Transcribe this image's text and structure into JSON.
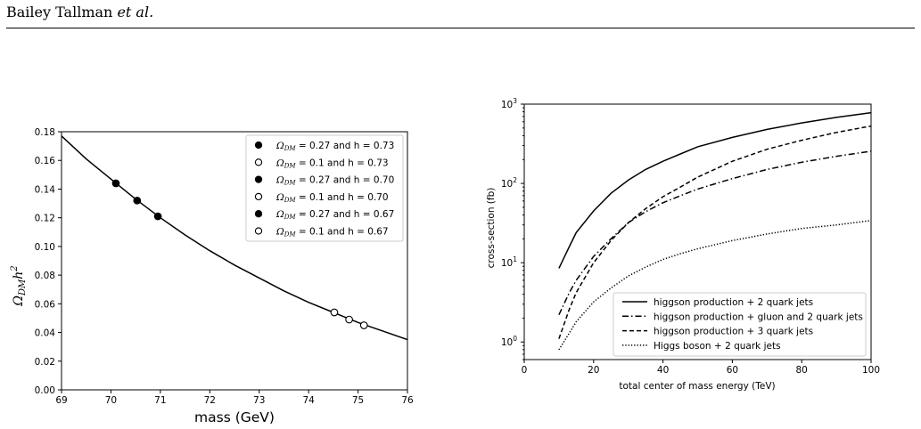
{
  "header": {
    "author": "Bailey Tallman",
    "etal": "et al."
  },
  "chart_data": [
    {
      "type": "line",
      "xlabel": "mass (GeV)",
      "ylabel": "Ω_DM h^2",
      "xlim": [
        69,
        76
      ],
      "ylim": [
        0,
        0.18
      ],
      "xticks": [
        "69",
        "70",
        "71",
        "72",
        "73",
        "74",
        "75",
        "76"
      ],
      "yticks": [
        "0.00",
        "0.02",
        "0.04",
        "0.06",
        "0.08",
        "0.10",
        "0.12",
        "0.14",
        "0.16",
        "0.18"
      ],
      "curve": {
        "x": [
          69.0,
          69.5,
          70.0,
          70.5,
          71.0,
          71.5,
          72.0,
          72.5,
          73.0,
          73.5,
          74.0,
          74.5,
          75.0,
          75.5,
          76.0
        ],
        "y": [
          0.177,
          0.161,
          0.147,
          0.133,
          0.12,
          0.108,
          0.097,
          0.087,
          0.078,
          0.069,
          0.061,
          0.054,
          0.047,
          0.041,
          0.035
        ]
      },
      "points": [
        {
          "x": 70.1,
          "y": 0.144,
          "filled": true
        },
        {
          "x": 70.53,
          "y": 0.132,
          "filled": true
        },
        {
          "x": 70.95,
          "y": 0.121,
          "filled": true
        },
        {
          "x": 74.52,
          "y": 0.054,
          "filled": false
        },
        {
          "x": 74.82,
          "y": 0.049,
          "filled": false
        },
        {
          "x": 75.12,
          "y": 0.045,
          "filled": false
        }
      ],
      "legend_position": "top-right",
      "legend": [
        {
          "label": "= 0.27 and h = 0.73",
          "filled": true
        },
        {
          "label": "= 0.1 and h = 0.73",
          "filled": false
        },
        {
          "label": "= 0.27 and h = 0.70",
          "filled": true
        },
        {
          "label": "= 0.1 and h = 0.70",
          "filled": false
        },
        {
          "label": "= 0.27 and h = 0.67",
          "filled": true
        },
        {
          "label": "= 0.1 and h = 0.67",
          "filled": false
        }
      ]
    },
    {
      "type": "line",
      "yscale": "log",
      "xlabel": "total center of mass energy (TeV)",
      "ylabel": "cross-section (fb)",
      "xlim": [
        0,
        100
      ],
      "ylim": [
        0.6,
        1000
      ],
      "xticks": [
        0,
        20,
        40,
        60,
        80,
        100
      ],
      "yticks": [
        1,
        10,
        100,
        1000
      ],
      "legend_position": "lower-right",
      "series": [
        {
          "name": "higgson production + 2 quark jets",
          "style": "solid",
          "x": [
            10,
            13,
            15,
            20,
            25,
            30,
            35,
            40,
            45,
            50,
            60,
            70,
            80,
            90,
            100
          ],
          "y": [
            8.5,
            16,
            24,
            45,
            75,
            110,
            150,
            190,
            235,
            290,
            380,
            480,
            580,
            680,
            780
          ]
        },
        {
          "name": "higgson production + gluon and 2 quark jets",
          "style": "dashdot",
          "x": [
            10,
            13,
            15,
            20,
            25,
            30,
            35,
            40,
            45,
            50,
            60,
            70,
            80,
            90,
            100
          ],
          "y": [
            2.2,
            4.2,
            6.0,
            12,
            20,
            32,
            44,
            57,
            70,
            85,
            115,
            150,
            185,
            220,
            255
          ]
        },
        {
          "name": "higgson production + 3 quark jets",
          "style": "dashed",
          "x": [
            10,
            13,
            15,
            20,
            25,
            30,
            35,
            40,
            45,
            50,
            60,
            70,
            80,
            90,
            100
          ],
          "y": [
            1.1,
            2.6,
            4.2,
            10,
            19,
            32,
            48,
            68,
            90,
            120,
            190,
            270,
            350,
            440,
            530
          ]
        },
        {
          "name": "Higgs boson + 2 quark jets",
          "style": "dotted",
          "x": [
            10,
            13,
            15,
            20,
            25,
            30,
            35,
            40,
            45,
            50,
            60,
            70,
            80,
            90,
            100
          ],
          "y": [
            0.8,
            1.3,
            1.8,
            3.2,
            4.8,
            6.8,
            8.8,
            11,
            13,
            15,
            19,
            23,
            27,
            30,
            34
          ]
        }
      ]
    }
  ]
}
